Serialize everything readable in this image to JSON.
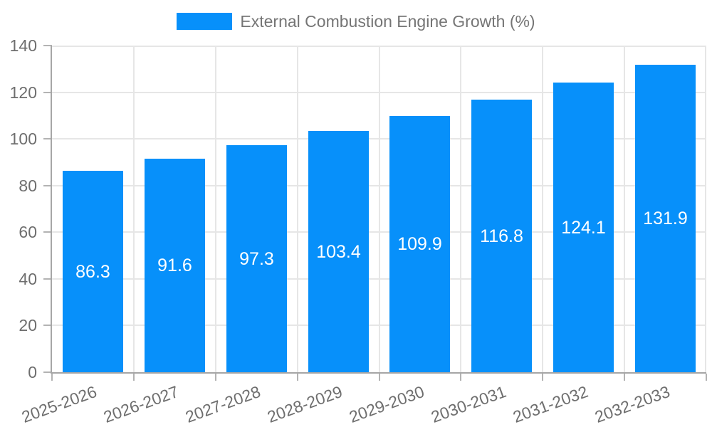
{
  "chart_data": {
    "type": "bar",
    "title": "",
    "legend": {
      "position": "top",
      "label": "External Combustion Engine Growth (%)"
    },
    "categories": [
      "2025-2026",
      "2026-2027",
      "2027-2028",
      "2028-2029",
      "2029-2030",
      "2030-2031",
      "2031-2032",
      "2032-2033"
    ],
    "series": [
      {
        "name": "External Combustion Engine Growth (%)",
        "values": [
          86.3,
          91.6,
          97.3,
          103.4,
          109.9,
          116.8,
          124.1,
          131.9
        ]
      }
    ],
    "value_labels": [
      "86.3",
      "91.6",
      "97.3",
      "103.4",
      "109.9",
      "116.8",
      "124.1",
      "131.9"
    ],
    "xlabel": "",
    "ylabel": "",
    "ylim": [
      0,
      140
    ],
    "yticks": [
      0,
      20,
      40,
      60,
      80,
      100,
      120,
      140
    ],
    "grid": true,
    "x_tick_rotation_deg": -20,
    "bar_value_labels_inside": true,
    "colors": {
      "bar": "#0790fa",
      "grid_line": "#e6e6e6",
      "axis_line": "#a6a6a6",
      "tick_mark": "#b3b3b3",
      "tick_label": "#6e6e6e",
      "legend_text": "#757575",
      "value_label": "#ffffff",
      "background": "#ffffff"
    }
  }
}
